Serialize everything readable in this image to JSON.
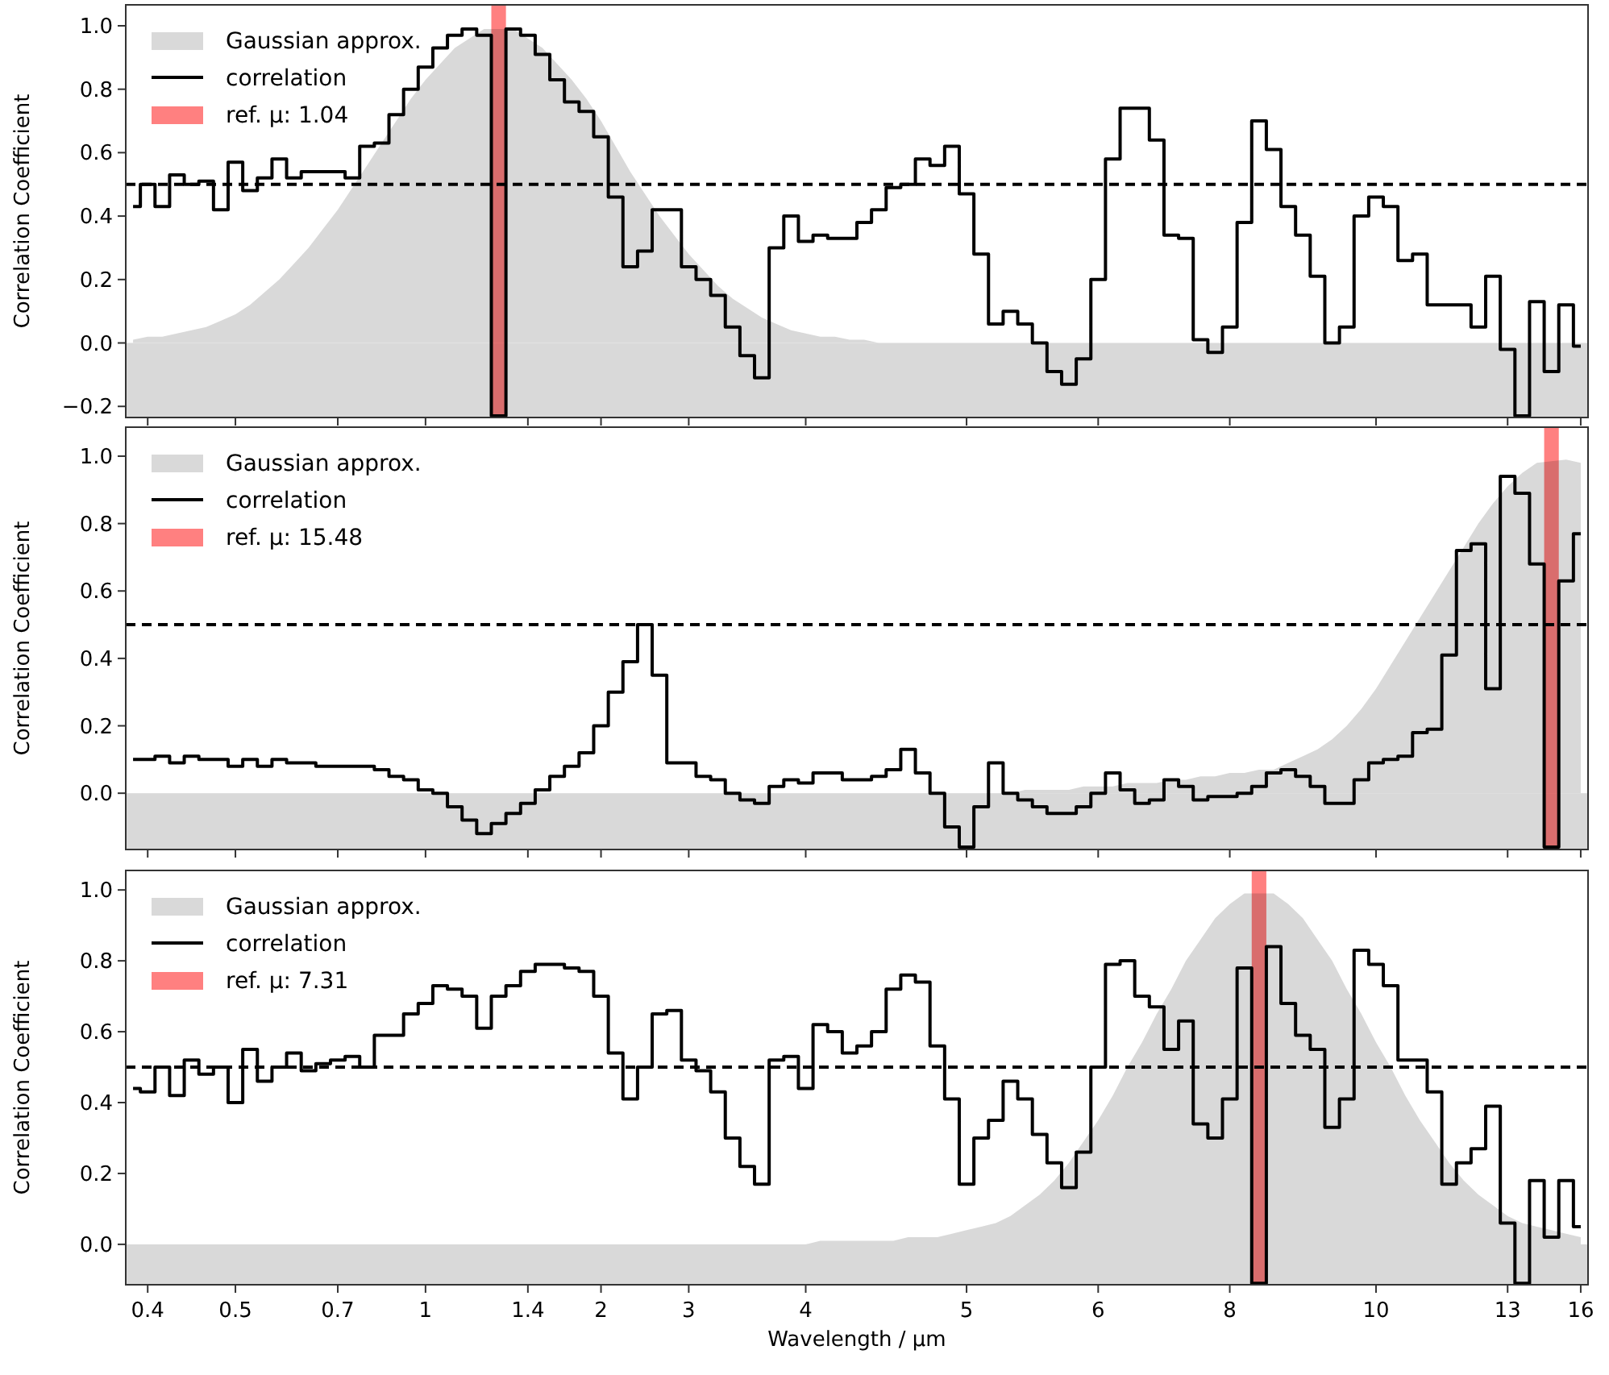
{
  "chart_data": [
    {
      "type": "step",
      "ylabel": "Correlation Coefficient",
      "legend": "top left",
      "tick_labels": "y",
      "categories": [
        null,
        "0.4",
        null,
        null,
        null,
        null,
        null,
        "0.5",
        null,
        null,
        null,
        null,
        null,
        null,
        "0.7",
        null,
        null,
        null,
        null,
        null,
        "1",
        null,
        null,
        null,
        null,
        null,
        null,
        "1.4",
        null,
        null,
        null,
        null,
        "2",
        null,
        null,
        null,
        null,
        null,
        "3",
        null,
        null,
        null,
        null,
        null,
        null,
        null,
        "4",
        null,
        null,
        null,
        null,
        null,
        null,
        null,
        null,
        null,
        null,
        "5",
        null,
        null,
        null,
        null,
        null,
        null,
        null,
        null,
        "6",
        null,
        null,
        null,
        null,
        null,
        null,
        null,
        null,
        "8",
        null,
        null,
        null,
        null,
        null,
        null,
        null,
        null,
        null,
        "10",
        null,
        null,
        null,
        null,
        null,
        null,
        null,
        null,
        "13",
        null,
        null,
        null,
        null,
        "16"
      ],
      "ylim": [
        -0.235,
        1.066
      ],
      "yticks": [
        {
          "value": -0.2,
          "label": "−0.2"
        },
        {
          "value": 0,
          "label": "0.0"
        },
        {
          "value": 0.2,
          "label": "0.2"
        },
        {
          "value": 0.4,
          "label": "0.4"
        },
        {
          "value": 0.6,
          "label": "0.6"
        },
        {
          "value": 0.8,
          "label": "0.8"
        },
        {
          "value": 1,
          "label": "1.0"
        }
      ],
      "series": [
        {
          "name": "Gaussian approx.",
          "type": "area",
          "color": "#d9d9d9",
          "values": [
            0.01,
            0.02,
            0.02,
            0.03,
            0.04,
            0.05,
            0.07,
            0.09,
            0.12,
            0.16,
            0.2,
            0.25,
            0.3,
            0.36,
            0.42,
            0.49,
            0.56,
            0.63,
            0.7,
            0.77,
            0.83,
            0.88,
            0.93,
            0.96,
            0.99,
            null,
            0.99,
            0.96,
            0.93,
            0.88,
            0.83,
            0.77,
            0.7,
            0.62,
            0.54,
            0.47,
            0.4,
            0.34,
            0.28,
            0.23,
            0.18,
            0.14,
            0.11,
            0.08,
            0.06,
            0.04,
            0.03,
            0.02,
            0.02,
            0.01,
            0.01,
            0,
            0,
            0,
            0,
            0,
            0,
            0,
            0,
            0,
            0,
            0,
            0,
            0,
            0,
            0,
            0,
            0,
            0,
            0,
            0,
            0,
            0,
            0,
            0,
            0,
            0,
            0,
            0,
            0,
            0,
            0,
            0,
            0,
            0,
            0,
            0,
            0,
            0,
            0,
            0,
            0,
            0,
            0,
            0,
            0,
            0,
            0,
            0,
            0
          ]
        },
        {
          "name": "correlation",
          "color": "#000000",
          "values": [
            0.43,
            0.5,
            0.43,
            0.53,
            0.5,
            0.51,
            0.42,
            0.57,
            0.48,
            0.52,
            0.58,
            0.52,
            0.54,
            0.54,
            0.54,
            0.52,
            0.62,
            0.63,
            0.72,
            0.8,
            0.87,
            0.93,
            0.97,
            0.99,
            0.97,
            -0.23,
            0.99,
            0.97,
            0.91,
            0.83,
            0.76,
            0.73,
            0.65,
            0.46,
            0.24,
            0.29,
            0.42,
            0.42,
            0.24,
            0.2,
            0.15,
            0.05,
            -0.04,
            -0.11,
            0.3,
            0.4,
            0.32,
            0.34,
            0.33,
            0.33,
            0.38,
            0.42,
            0.49,
            0.5,
            0.58,
            0.56,
            0.62,
            0.47,
            0.28,
            0.06,
            0.1,
            0.06,
            0.0,
            -0.09,
            -0.13,
            -0.05,
            0.2,
            0.58,
            0.74,
            0.74,
            0.64,
            0.34,
            0.33,
            0.01,
            -0.03,
            0.05,
            0.38,
            0.7,
            0.61,
            0.43,
            0.34,
            0.21,
            0.0,
            0.05,
            0.4,
            0.46,
            0.43,
            0.26,
            0.28,
            0.12,
            0.12,
            0.12,
            0.05,
            0.21,
            -0.02,
            -0.23,
            0.13,
            -0.09,
            0.12,
            -0.01
          ]
        },
        {
          "name": "ref. µ: 1.04",
          "type": "bar",
          "color": "#ff8080",
          "base": [
            null,
            null,
            null,
            null,
            null,
            null,
            null,
            null,
            null,
            null,
            null,
            null,
            null,
            null,
            null,
            null,
            null,
            null,
            null,
            null,
            null,
            null,
            null,
            null,
            null,
            -0.235,
            null,
            null,
            null,
            null,
            null,
            null,
            null,
            null,
            null,
            null,
            null,
            null,
            null,
            null,
            null,
            null,
            null,
            null,
            null,
            null,
            null,
            null,
            null,
            null,
            null,
            null,
            null,
            null,
            null,
            null,
            null,
            null,
            null,
            null,
            null,
            null,
            null,
            null,
            null,
            null,
            null,
            null,
            null,
            null,
            null,
            null,
            null,
            null,
            null,
            null,
            null,
            null,
            null,
            null,
            null,
            null,
            null,
            null,
            null,
            null,
            null,
            null,
            null,
            null,
            null,
            null,
            null,
            null,
            null,
            null,
            null,
            null,
            null,
            null
          ],
          "values": [
            null,
            null,
            null,
            null,
            null,
            null,
            null,
            null,
            null,
            null,
            null,
            null,
            null,
            null,
            null,
            null,
            null,
            null,
            null,
            null,
            null,
            null,
            null,
            null,
            null,
            1.301,
            null,
            null,
            null,
            null,
            null,
            null,
            null,
            null,
            null,
            null,
            null,
            null,
            null,
            null,
            null,
            null,
            null,
            null,
            null,
            null,
            null,
            null,
            null,
            null,
            null,
            null,
            null,
            null,
            null,
            null,
            null,
            null,
            null,
            null,
            null,
            null,
            null,
            null,
            null,
            null,
            null,
            null,
            null,
            null,
            null,
            null,
            null,
            null,
            null,
            null,
            null,
            null,
            null,
            null,
            null,
            null,
            null,
            null,
            null,
            null,
            null,
            null,
            null,
            null,
            null,
            null,
            null,
            null,
            null,
            null,
            null,
            null,
            null,
            null
          ]
        }
      ],
      "ref_lines": [
        {
          "axis": "y",
          "value": 0.5,
          "line_style": "dashed",
          "color": "#000000"
        }
      ]
    },
    {
      "type": "step",
      "ylabel": "Correlation Coefficient",
      "legend": "top left",
      "tick_labels": "y",
      "categories": [
        null,
        "0.4",
        null,
        null,
        null,
        null,
        null,
        "0.5",
        null,
        null,
        null,
        null,
        null,
        null,
        "0.7",
        null,
        null,
        null,
        null,
        null,
        "1",
        null,
        null,
        null,
        null,
        null,
        null,
        "1.4",
        null,
        null,
        null,
        null,
        "2",
        null,
        null,
        null,
        null,
        null,
        "3",
        null,
        null,
        null,
        null,
        null,
        null,
        null,
        "4",
        null,
        null,
        null,
        null,
        null,
        null,
        null,
        null,
        null,
        null,
        "5",
        null,
        null,
        null,
        null,
        null,
        null,
        null,
        null,
        "6",
        null,
        null,
        null,
        null,
        null,
        null,
        null,
        null,
        "8",
        null,
        null,
        null,
        null,
        null,
        null,
        null,
        null,
        null,
        "10",
        null,
        null,
        null,
        null,
        null,
        null,
        null,
        null,
        "13",
        null,
        null,
        null,
        null,
        "16"
      ],
      "ylim": [
        -0.167,
        1.086
      ],
      "yticks": [
        {
          "value": 0,
          "label": "0.0"
        },
        {
          "value": 0.2,
          "label": "0.2"
        },
        {
          "value": 0.4,
          "label": "0.4"
        },
        {
          "value": 0.6,
          "label": "0.6"
        },
        {
          "value": 0.8,
          "label": "0.8"
        },
        {
          "value": 1,
          "label": "1.0"
        }
      ],
      "series": [
        {
          "name": "Gaussian approx.",
          "type": "area",
          "color": "#d9d9d9",
          "values": [
            0,
            0,
            0,
            0,
            0,
            0,
            0,
            0,
            0,
            0,
            0,
            0,
            0,
            0,
            0,
            0,
            0,
            0,
            0,
            0,
            0,
            0,
            0,
            0,
            0,
            0,
            0,
            0,
            0,
            0,
            0,
            0,
            0,
            0,
            0,
            0,
            0,
            0,
            0,
            0,
            0,
            0,
            0,
            0,
            0,
            0,
            0,
            0,
            0,
            0,
            0,
            0,
            0,
            0,
            0,
            0,
            0,
            0,
            0,
            0,
            0,
            0.01,
            0.01,
            0.01,
            0.01,
            0.02,
            0.02,
            0.02,
            0.03,
            0.03,
            0.03,
            0.04,
            0.04,
            0.05,
            0.05,
            0.06,
            0.06,
            0.07,
            0.07,
            0.09,
            0.11,
            0.13,
            0.16,
            0.2,
            0.25,
            0.31,
            0.38,
            0.45,
            0.52,
            0.59,
            0.66,
            0.73,
            0.8,
            0.86,
            0.91,
            0.95,
            0.98,
            null,
            0.99,
            0.98
          ]
        },
        {
          "name": "correlation",
          "color": "#000000",
          "values": [
            0.1,
            0.1,
            0.11,
            0.09,
            0.11,
            0.1,
            0.1,
            0.08,
            0.1,
            0.08,
            0.1,
            0.09,
            0.09,
            0.08,
            0.08,
            0.08,
            0.08,
            0.07,
            0.05,
            0.04,
            0.01,
            0.0,
            -0.04,
            -0.08,
            -0.12,
            -0.09,
            -0.06,
            -0.03,
            0.01,
            0.05,
            0.08,
            0.12,
            0.2,
            0.3,
            0.39,
            0.5,
            0.35,
            0.09,
            0.09,
            0.05,
            0.04,
            0.0,
            -0.02,
            -0.03,
            0.02,
            0.04,
            0.03,
            0.06,
            0.06,
            0.04,
            0.04,
            0.05,
            0.07,
            0.13,
            0.06,
            0.0,
            -0.1,
            -0.16,
            -0.04,
            0.09,
            0.0,
            -0.02,
            -0.04,
            -0.06,
            -0.06,
            -0.04,
            0.0,
            0.06,
            0.01,
            -0.03,
            -0.02,
            0.04,
            0.02,
            -0.02,
            -0.01,
            -0.01,
            0.0,
            0.02,
            0.06,
            0.07,
            0.05,
            0.02,
            -0.03,
            -0.03,
            0.04,
            0.09,
            0.1,
            0.11,
            0.18,
            0.19,
            0.41,
            0.72,
            0.74,
            0.31,
            0.94,
            0.89,
            0.68,
            -0.16,
            0.63,
            0.77
          ]
        },
        {
          "name": "ref. µ: 15.48",
          "type": "bar",
          "color": "#ff8080",
          "base": [
            null,
            null,
            null,
            null,
            null,
            null,
            null,
            null,
            null,
            null,
            null,
            null,
            null,
            null,
            null,
            null,
            null,
            null,
            null,
            null,
            null,
            null,
            null,
            null,
            null,
            null,
            null,
            null,
            null,
            null,
            null,
            null,
            null,
            null,
            null,
            null,
            null,
            null,
            null,
            null,
            null,
            null,
            null,
            null,
            null,
            null,
            null,
            null,
            null,
            null,
            null,
            null,
            null,
            null,
            null,
            null,
            null,
            null,
            null,
            null,
            null,
            null,
            null,
            null,
            null,
            null,
            null,
            null,
            null,
            null,
            null,
            null,
            null,
            null,
            null,
            null,
            null,
            null,
            null,
            null,
            null,
            null,
            null,
            null,
            null,
            null,
            null,
            null,
            null,
            null,
            null,
            null,
            null,
            null,
            null,
            null,
            null,
            -0.167,
            null,
            null
          ],
          "values": [
            null,
            null,
            null,
            null,
            null,
            null,
            null,
            null,
            null,
            null,
            null,
            null,
            null,
            null,
            null,
            null,
            null,
            null,
            null,
            null,
            null,
            null,
            null,
            null,
            null,
            null,
            null,
            null,
            null,
            null,
            null,
            null,
            null,
            null,
            null,
            null,
            null,
            null,
            null,
            null,
            null,
            null,
            null,
            null,
            null,
            null,
            null,
            null,
            null,
            null,
            null,
            null,
            null,
            null,
            null,
            null,
            null,
            null,
            null,
            null,
            null,
            null,
            null,
            null,
            null,
            null,
            null,
            null,
            null,
            null,
            null,
            null,
            null,
            null,
            null,
            null,
            null,
            null,
            null,
            null,
            null,
            null,
            null,
            null,
            null,
            null,
            null,
            null,
            null,
            null,
            null,
            null,
            null,
            null,
            null,
            null,
            null,
            1.253,
            null,
            null
          ]
        }
      ],
      "ref_lines": [
        {
          "axis": "y",
          "value": 0.5,
          "line_style": "dashed",
          "color": "#000000"
        }
      ]
    },
    {
      "type": "step",
      "ylabel": "Correlation Coefficient",
      "xlabel": "Wavelength / µm",
      "legend": "top left",
      "categories": [
        null,
        "0.4",
        null,
        null,
        null,
        null,
        null,
        "0.5",
        null,
        null,
        null,
        null,
        null,
        null,
        "0.7",
        null,
        null,
        null,
        null,
        null,
        "1",
        null,
        null,
        null,
        null,
        null,
        null,
        "1.4",
        null,
        null,
        null,
        null,
        "2",
        null,
        null,
        null,
        null,
        null,
        "3",
        null,
        null,
        null,
        null,
        null,
        null,
        null,
        "4",
        null,
        null,
        null,
        null,
        null,
        null,
        null,
        null,
        null,
        null,
        "5",
        null,
        null,
        null,
        null,
        null,
        null,
        null,
        null,
        "6",
        null,
        null,
        null,
        null,
        null,
        null,
        null,
        null,
        "8",
        null,
        null,
        null,
        null,
        null,
        null,
        null,
        null,
        null,
        "10",
        null,
        null,
        null,
        null,
        null,
        null,
        null,
        null,
        "13",
        null,
        null,
        null,
        null,
        "16"
      ],
      "ylim": [
        -0.114,
        1.055
      ],
      "yticks": [
        {
          "value": 0,
          "label": "0.0"
        },
        {
          "value": 0.2,
          "label": "0.2"
        },
        {
          "value": 0.4,
          "label": "0.4"
        },
        {
          "value": 0.6,
          "label": "0.6"
        },
        {
          "value": 0.8,
          "label": "0.8"
        },
        {
          "value": 1,
          "label": "1.0"
        }
      ],
      "series": [
        {
          "name": "Gaussian approx.",
          "type": "area",
          "color": "#d9d9d9",
          "values": [
            0,
            0,
            0,
            0,
            0,
            0,
            0,
            0,
            0,
            0,
            0,
            0,
            0,
            0,
            0,
            0,
            0,
            0,
            0,
            0,
            0,
            0,
            0,
            0,
            0,
            0,
            0,
            0,
            0,
            0,
            0,
            0,
            0,
            0,
            0,
            0,
            0,
            0,
            0,
            0,
            0,
            0,
            0,
            0,
            0,
            0,
            0,
            0.01,
            0.01,
            0.01,
            0.01,
            0.01,
            0.01,
            0.02,
            0.02,
            0.02,
            0.03,
            0.04,
            0.05,
            0.06,
            0.08,
            0.11,
            0.14,
            0.18,
            0.23,
            0.29,
            0.35,
            0.42,
            0.5,
            0.57,
            0.65,
            0.72,
            0.8,
            0.86,
            0.92,
            0.96,
            0.99,
            null,
            0.99,
            0.96,
            0.92,
            0.86,
            0.8,
            0.72,
            0.65,
            0.57,
            0.5,
            0.42,
            0.35,
            0.29,
            0.23,
            0.18,
            0.14,
            0.11,
            0.08,
            0.06,
            0.05,
            0.04,
            0.03,
            0.02
          ]
        },
        {
          "name": "correlation",
          "color": "#000000",
          "values": [
            0.44,
            0.43,
            0.5,
            0.42,
            0.52,
            0.48,
            0.5,
            0.4,
            0.55,
            0.46,
            0.5,
            0.54,
            0.49,
            0.51,
            0.52,
            0.53,
            0.5,
            0.59,
            0.59,
            0.65,
            0.68,
            0.73,
            0.72,
            0.7,
            0.61,
            0.7,
            0.73,
            0.77,
            0.79,
            0.79,
            0.78,
            0.77,
            0.7,
            0.54,
            0.41,
            0.5,
            0.65,
            0.66,
            0.52,
            0.49,
            0.43,
            0.3,
            0.22,
            0.17,
            0.52,
            0.53,
            0.44,
            0.62,
            0.6,
            0.54,
            0.56,
            0.6,
            0.72,
            0.76,
            0.74,
            0.56,
            0.41,
            0.17,
            0.3,
            0.35,
            0.46,
            0.41,
            0.31,
            0.23,
            0.16,
            0.26,
            0.5,
            0.79,
            0.8,
            0.7,
            0.67,
            0.55,
            0.63,
            0.34,
            0.3,
            0.41,
            0.78,
            -0.11,
            0.84,
            0.68,
            0.59,
            0.55,
            0.33,
            0.41,
            0.83,
            0.79,
            0.73,
            0.52,
            0.52,
            0.43,
            0.17,
            0.23,
            0.27,
            0.39,
            0.06,
            -0.11,
            0.18,
            0.02,
            0.18,
            0.05
          ]
        },
        {
          "name": "ref. µ: 7.31",
          "type": "bar",
          "color": "#ff8080",
          "base": [
            null,
            null,
            null,
            null,
            null,
            null,
            null,
            null,
            null,
            null,
            null,
            null,
            null,
            null,
            null,
            null,
            null,
            null,
            null,
            null,
            null,
            null,
            null,
            null,
            null,
            null,
            null,
            null,
            null,
            null,
            null,
            null,
            null,
            null,
            null,
            null,
            null,
            null,
            null,
            null,
            null,
            null,
            null,
            null,
            null,
            null,
            null,
            null,
            null,
            null,
            null,
            null,
            null,
            null,
            null,
            null,
            null,
            null,
            null,
            null,
            null,
            null,
            null,
            null,
            null,
            null,
            null,
            null,
            null,
            null,
            null,
            null,
            null,
            null,
            null,
            null,
            null,
            -0.114,
            null,
            null,
            null,
            null,
            null,
            null,
            null,
            null,
            null,
            null,
            null,
            null,
            null,
            null,
            null,
            null,
            null,
            null,
            null,
            null,
            null,
            null
          ],
          "values": [
            null,
            null,
            null,
            null,
            null,
            null,
            null,
            null,
            null,
            null,
            null,
            null,
            null,
            null,
            null,
            null,
            null,
            null,
            null,
            null,
            null,
            null,
            null,
            null,
            null,
            null,
            null,
            null,
            null,
            null,
            null,
            null,
            null,
            null,
            null,
            null,
            null,
            null,
            null,
            null,
            null,
            null,
            null,
            null,
            null,
            null,
            null,
            null,
            null,
            null,
            null,
            null,
            null,
            null,
            null,
            null,
            null,
            null,
            null,
            null,
            null,
            null,
            null,
            null,
            null,
            null,
            null,
            null,
            null,
            null,
            null,
            null,
            null,
            null,
            null,
            null,
            null,
            1.169,
            null,
            null,
            null,
            null,
            null,
            null,
            null,
            null,
            null,
            null,
            null,
            null,
            null,
            null,
            null,
            null,
            null,
            null,
            null,
            null,
            null,
            null
          ]
        }
      ],
      "ref_lines": [
        {
          "axis": "y",
          "value": 0.5,
          "line_style": "dashed",
          "color": "#000000"
        }
      ]
    }
  ]
}
